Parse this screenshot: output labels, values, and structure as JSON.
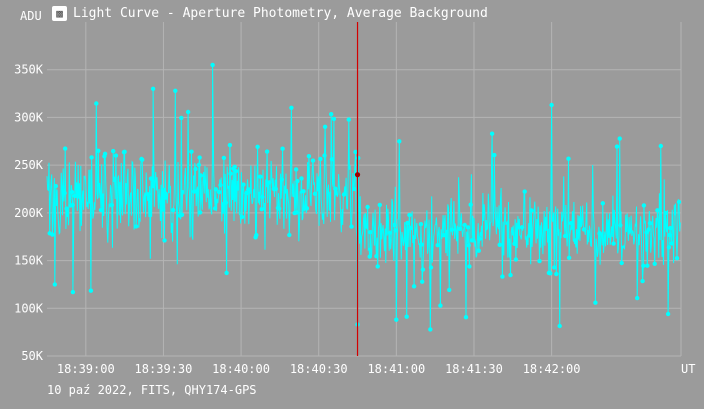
{
  "window": {
    "title": "Light Curve - Aperture Photometry, Average Background",
    "icon": "chart-app-icon"
  },
  "footer": {
    "text": "10 paź 2022, FITS, QHY174-GPS"
  },
  "colors": {
    "background": "#9b9b9b",
    "grid": "#b4b4b4",
    "series": "#00ffff",
    "cursor": "#d40000",
    "marker": "#a00000",
    "text": "#ffffff"
  },
  "chart_data": {
    "type": "scatter",
    "title": "",
    "ylabel": "ADU",
    "xlabel": "UT",
    "ylim": [
      50000,
      400000
    ],
    "yticks": [
      50000,
      100000,
      150000,
      200000,
      250000,
      300000,
      350000
    ],
    "ytick_labels": [
      "50K",
      "100K",
      "150K",
      "200K",
      "250K",
      "300K",
      "350K"
    ],
    "xlim": [
      "18:38:45",
      "18:42:50"
    ],
    "xticks": [
      "18:39:00",
      "18:39:30",
      "18:40:00",
      "18:40:30",
      "18:41:00",
      "18:41:30",
      "18:42:00"
    ],
    "grid": true,
    "connected_points": true,
    "cursor_x": "18:40:45",
    "cursor_value": 240000,
    "series": [
      {
        "segments": [
          {
            "x_start": "18:38:45",
            "x_end": "18:40:45",
            "mean": 218000,
            "spread": 38000,
            "count": 460
          },
          {
            "x_start": "18:40:45",
            "x_end": "18:42:50",
            "mean": 182000,
            "spread": 35000,
            "count": 480
          }
        ],
        "notable_points": [
          {
            "x": "18:39:49",
            "y": 355000
          },
          {
            "x": "18:39:26",
            "y": 330000
          },
          {
            "x": "18:42:00",
            "y": 313000
          },
          {
            "x": "18:41:37",
            "y": 283000
          },
          {
            "x": "18:40:45",
            "y": 83000
          },
          {
            "x": "18:41:00",
            "y": 88000
          },
          {
            "x": "18:42:45",
            "y": 94000
          },
          {
            "x": "18:38:48",
            "y": 125000
          },
          {
            "x": "18:38:55",
            "y": 117000
          }
        ]
      }
    ]
  }
}
